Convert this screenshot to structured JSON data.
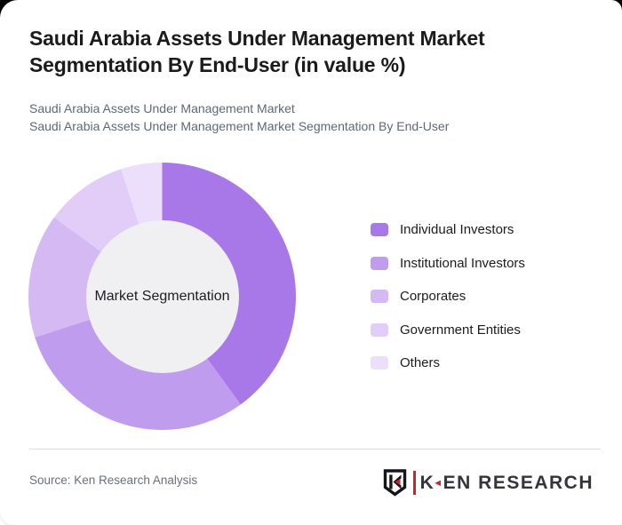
{
  "header": {
    "title": "Saudi Arabia Assets Under Management Market Segmentation By End-User (in value %)",
    "subtitle_line1": "Saudi Arabia Assets Under Management Market",
    "subtitle_line2": "Saudi Arabia Assets Under Management Market Segmentation By End-User"
  },
  "chart_data": {
    "type": "pie",
    "variant": "donut",
    "title": "Saudi Arabia Assets Under Management Market Segmentation By End-User (in value %)",
    "center_label": "Market Segmentation",
    "unit": "value %",
    "legend_position": "right",
    "start_angle_deg": 0,
    "categories": [
      "Individual Investors",
      "Institutional Investors",
      "Corporates",
      "Government Entities",
      "Others"
    ],
    "values": [
      40,
      30,
      15,
      10,
      5
    ],
    "colors": [
      "#a978e8",
      "#c09cee",
      "#d4b9f3",
      "#e1cdf7",
      "#ecdffb"
    ],
    "inner_radius_ratio": 0.57,
    "inner_circle_color": "#f0eff1"
  },
  "footer": {
    "source_text": "Source: Ken Research Analysis",
    "logo": {
      "emblem_letter": "K",
      "brand_first_letter": "K",
      "brand_rest": "EN RESEARCH",
      "triangle_glyph": "◄",
      "accent_color": "#c9252c",
      "text_color": "#34343a"
    }
  }
}
